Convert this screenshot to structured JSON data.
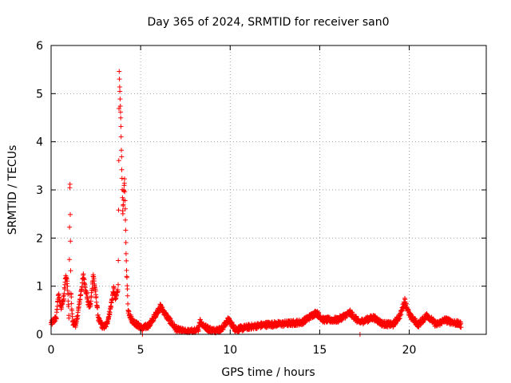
{
  "chart_data": {
    "type": "scatter",
    "title": "Day 365 of 2024, SRMTID for receiver san0",
    "xlabel": "GPS time / hours",
    "ylabel": "SRMTID / TECUs",
    "xlim": [
      0,
      24.3
    ],
    "ylim": [
      0,
      6
    ],
    "xticks": [
      0,
      5,
      10,
      15,
      20
    ],
    "yticks": [
      0,
      1,
      2,
      3,
      4,
      5,
      6
    ],
    "grid": true,
    "marker": "+",
    "color": "#ff0000",
    "series": [
      {
        "name": "SRMTID",
        "profile": [
          [
            0.0,
            0.22
          ],
          [
            0.3,
            0.35
          ],
          [
            0.4,
            0.85
          ],
          [
            0.55,
            0.55
          ],
          [
            0.7,
            0.75
          ],
          [
            0.8,
            1.2
          ],
          [
            0.9,
            1.1
          ],
          [
            1.0,
            0.3
          ],
          [
            1.05,
            3.4
          ],
          [
            1.1,
            0.9
          ],
          [
            1.2,
            0.25
          ],
          [
            1.4,
            0.2
          ],
          [
            1.6,
            0.7
          ],
          [
            1.8,
            1.22
          ],
          [
            1.95,
            0.9
          ],
          [
            2.1,
            0.6
          ],
          [
            2.2,
            0.6
          ],
          [
            2.35,
            1.25
          ],
          [
            2.5,
            0.8
          ],
          [
            2.65,
            0.3
          ],
          [
            2.9,
            0.15
          ],
          [
            3.1,
            0.2
          ],
          [
            3.3,
            0.5
          ],
          [
            3.5,
            0.95
          ],
          [
            3.6,
            0.7
          ],
          [
            3.75,
            1.0
          ],
          [
            3.8,
            5.45
          ],
          [
            3.9,
            4.3
          ],
          [
            4.0,
            2.5
          ],
          [
            4.1,
            3.25
          ],
          [
            4.2,
            1.5
          ],
          [
            4.3,
            0.5
          ],
          [
            4.5,
            0.3
          ],
          [
            4.8,
            0.2
          ],
          [
            5.1,
            0.12
          ],
          [
            5.5,
            0.2
          ],
          [
            5.9,
            0.45
          ],
          [
            6.1,
            0.58
          ],
          [
            6.5,
            0.35
          ],
          [
            7.0,
            0.1
          ],
          [
            7.6,
            0.05
          ],
          [
            8.2,
            0.08
          ],
          [
            8.3,
            0.28
          ],
          [
            8.6,
            0.15
          ],
          [
            9.0,
            0.08
          ],
          [
            9.5,
            0.1
          ],
          [
            9.9,
            0.3
          ],
          [
            10.3,
            0.1
          ],
          [
            11.0,
            0.15
          ],
          [
            12.0,
            0.2
          ],
          [
            13.0,
            0.22
          ],
          [
            14.0,
            0.25
          ],
          [
            14.8,
            0.45
          ],
          [
            15.2,
            0.3
          ],
          [
            16.0,
            0.3
          ],
          [
            16.7,
            0.45
          ],
          [
            17.2,
            0.25
          ],
          [
            17.6,
            0.3
          ],
          [
            18.0,
            0.35
          ],
          [
            18.5,
            0.22
          ],
          [
            19.1,
            0.2
          ],
          [
            19.5,
            0.4
          ],
          [
            19.75,
            0.7
          ],
          [
            20.0,
            0.4
          ],
          [
            20.5,
            0.2
          ],
          [
            21.0,
            0.4
          ],
          [
            21.5,
            0.2
          ],
          [
            22.0,
            0.3
          ],
          [
            22.9,
            0.2
          ]
        ],
        "singletons": [
          [
            5.1,
            0.0
          ],
          [
            17.25,
            0.0
          ]
        ],
        "x_end": 22.9
      }
    ]
  }
}
